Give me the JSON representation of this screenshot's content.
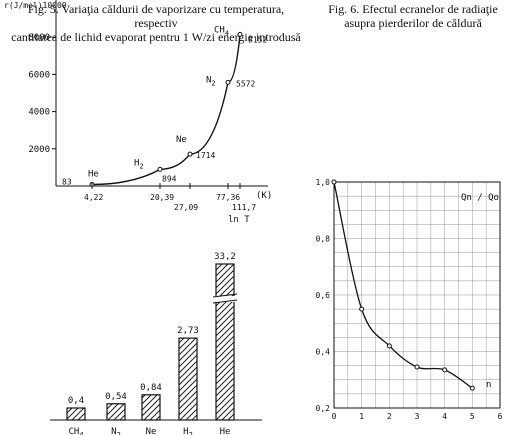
{
  "captions": {
    "fig5_line1": "Fig. 5. Variaţia căldurii de vaporizare cu temperatura, respectiv",
    "fig5_line2": "cantitatea de lichid evaporat pentru 1 W/zi energie introdusă",
    "fig6_line1": "Fig. 6. Efectul ecranelor de radiaţie",
    "fig6_line2": "asupra pierderilor de căldură"
  },
  "chart_data": [
    {
      "type": "line",
      "ylabel": "r(J/mol)10000",
      "xlabel": "(K)",
      "xlabel2": "ln T",
      "yticks": [
        "2000",
        "4000",
        "6000",
        "8000"
      ],
      "ylim": [
        0,
        10000
      ],
      "points": [
        {
          "name": "He",
          "x": 4.22,
          "y": 83,
          "label": "83",
          "xtick": "4,22"
        },
        {
          "name": "H2",
          "x": 20.39,
          "y": 894,
          "label": "894",
          "xtick": "20,39"
        },
        {
          "name": "Ne",
          "x": 27.09,
          "y": 1714,
          "label": "1714",
          "xtick": "27,09"
        },
        {
          "name": "N2",
          "x": 77.36,
          "y": 5572,
          "label": "5572",
          "xtick": "77,36"
        },
        {
          "name": "CH4",
          "x": 111.7,
          "y": 8152,
          "label": "8152",
          "xtick": "111,7"
        }
      ]
    },
    {
      "type": "bar",
      "categories": [
        "CH4",
        "N2",
        "Ne",
        "H2",
        "He"
      ],
      "values": [
        0.4,
        0.54,
        0.84,
        2.73,
        33.2
      ],
      "value_labels": [
        "0,4",
        "0,54",
        "0,84",
        "2,73",
        "33,2"
      ],
      "axis_break_on": "He"
    },
    {
      "type": "line",
      "ylabel": "Qn / Qo",
      "xlabel": "n",
      "ylim": [
        0.2,
        1.0
      ],
      "xlim": [
        0,
        6
      ],
      "xticks": [
        "0",
        "1",
        "2",
        "3",
        "4",
        "5",
        "6"
      ],
      "yticks": [
        "0,2",
        "0,4",
        "0,6",
        "0,8",
        "1,0"
      ],
      "grid": true,
      "x": [
        0,
        1,
        2,
        3,
        4,
        5
      ],
      "y": [
        1.0,
        0.55,
        0.42,
        0.345,
        0.335,
        0.27
      ]
    }
  ]
}
